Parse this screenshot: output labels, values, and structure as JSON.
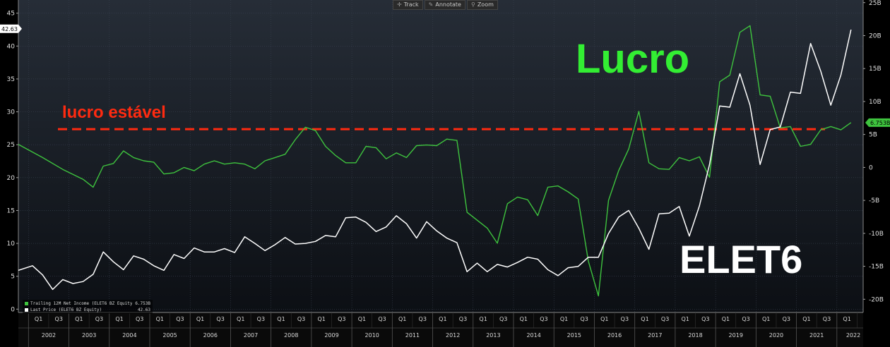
{
  "toolbar": {
    "buttons": [
      {
        "icon": "crosshair-icon",
        "glyph": "✛",
        "label": "Track"
      },
      {
        "icon": "pencil-icon",
        "glyph": "✎",
        "label": "Annotate"
      },
      {
        "icon": "magnifier-icon",
        "glyph": "⚲",
        "label": "Zoom"
      }
    ]
  },
  "legend": {
    "entries": [
      {
        "label": "Trailing 12M Net Income (ELET6 BZ Equity)",
        "value": "6.753B",
        "color": "#3ec33e"
      },
      {
        "label": "Last Price (ELET6 BZ Equity)",
        "value": "42.63",
        "color": "#ffffff"
      }
    ]
  },
  "annotations": {
    "lucro": {
      "text": "Lucro",
      "color": "#33ee33"
    },
    "elet6": {
      "text": "ELET6",
      "color": "#ffffff"
    },
    "estavel": {
      "text": "lucro estável",
      "color": "#ff2a10"
    }
  },
  "chart_data": {
    "type": "line",
    "x_unit": "year",
    "xlim": [
      2001.75,
      2022.65
    ],
    "grid": true,
    "left_axis": {
      "ticks": [
        0,
        5,
        10,
        15,
        20,
        25,
        30,
        35,
        40,
        45
      ],
      "ylim": [
        -0.5,
        47
      ]
    },
    "right_axis": {
      "ticks": [
        "25B",
        "20B",
        "15B",
        "10B",
        "5B",
        "0",
        "-5B",
        "-10B",
        "-15B",
        "-20B"
      ],
      "tick_values": [
        25,
        20,
        15,
        10,
        5,
        0,
        -5,
        -10,
        -15,
        -20
      ],
      "ylim": [
        -22,
        25.4
      ]
    },
    "year_labels": [
      "2002",
      "2003",
      "2004",
      "2005",
      "2006",
      "2007",
      "2008",
      "2009",
      "2010",
      "2011",
      "2012",
      "2013",
      "2014",
      "2015",
      "2016",
      "2017",
      "2018",
      "2019",
      "2020",
      "2021",
      "2022"
    ],
    "quarter_labels": [
      "Q1",
      "Q3"
    ],
    "price_flag": "42.63",
    "income_flag": "6.753B",
    "reference_line": {
      "axis": "right",
      "y": 5.8,
      "style": "dashed",
      "color": "#ff2a10"
    },
    "series": [
      {
        "name": "Last Price (ELET6 BZ Equity)",
        "axis": "left",
        "color": "#ffffff",
        "points": [
          [
            2001.75,
            5.9
          ],
          [
            2002.1,
            6.6
          ],
          [
            2002.35,
            5.2
          ],
          [
            2002.6,
            3.0
          ],
          [
            2002.85,
            4.5
          ],
          [
            2003.1,
            3.9
          ],
          [
            2003.35,
            4.2
          ],
          [
            2003.6,
            5.3
          ],
          [
            2003.85,
            8.7
          ],
          [
            2004.1,
            7.2
          ],
          [
            2004.35,
            6.0
          ],
          [
            2004.6,
            8.1
          ],
          [
            2004.85,
            7.6
          ],
          [
            2005.1,
            6.6
          ],
          [
            2005.35,
            5.9
          ],
          [
            2005.6,
            8.3
          ],
          [
            2005.85,
            7.7
          ],
          [
            2006.1,
            9.3
          ],
          [
            2006.35,
            8.7
          ],
          [
            2006.6,
            8.7
          ],
          [
            2006.85,
            9.2
          ],
          [
            2007.1,
            8.6
          ],
          [
            2007.35,
            11.0
          ],
          [
            2007.6,
            10.0
          ],
          [
            2007.85,
            8.9
          ],
          [
            2008.1,
            9.8
          ],
          [
            2008.35,
            10.9
          ],
          [
            2008.6,
            9.9
          ],
          [
            2008.85,
            10.0
          ],
          [
            2009.1,
            10.3
          ],
          [
            2009.35,
            11.2
          ],
          [
            2009.6,
            11.0
          ],
          [
            2009.85,
            13.9
          ],
          [
            2010.1,
            14.0
          ],
          [
            2010.35,
            13.2
          ],
          [
            2010.6,
            11.8
          ],
          [
            2010.85,
            12.5
          ],
          [
            2011.1,
            14.2
          ],
          [
            2011.35,
            13.0
          ],
          [
            2011.6,
            10.8
          ],
          [
            2011.85,
            13.3
          ],
          [
            2012.1,
            11.9
          ],
          [
            2012.35,
            10.8
          ],
          [
            2012.6,
            10.1
          ],
          [
            2012.85,
            5.7
          ],
          [
            2013.1,
            7.0
          ],
          [
            2013.35,
            5.7
          ],
          [
            2013.6,
            6.8
          ],
          [
            2013.85,
            6.4
          ],
          [
            2014.1,
            7.1
          ],
          [
            2014.35,
            7.9
          ],
          [
            2014.6,
            7.6
          ],
          [
            2014.85,
            6.0
          ],
          [
            2015.1,
            5.1
          ],
          [
            2015.35,
            6.3
          ],
          [
            2015.6,
            6.5
          ],
          [
            2015.85,
            7.9
          ],
          [
            2016.1,
            7.9
          ],
          [
            2016.35,
            11.5
          ],
          [
            2016.6,
            14.0
          ],
          [
            2016.85,
            15.0
          ],
          [
            2017.1,
            12.3
          ],
          [
            2017.35,
            9.1
          ],
          [
            2017.6,
            14.5
          ],
          [
            2017.85,
            14.6
          ],
          [
            2018.1,
            15.6
          ],
          [
            2018.35,
            11.1
          ],
          [
            2018.6,
            15.7
          ],
          [
            2018.85,
            22.0
          ],
          [
            2019.1,
            30.9
          ],
          [
            2019.35,
            30.7
          ],
          [
            2019.6,
            35.8
          ],
          [
            2019.85,
            31.0
          ],
          [
            2020.1,
            22.0
          ],
          [
            2020.35,
            27.3
          ],
          [
            2020.6,
            27.7
          ],
          [
            2020.85,
            33.0
          ],
          [
            2021.1,
            32.8
          ],
          [
            2021.35,
            40.4
          ],
          [
            2021.6,
            36.2
          ],
          [
            2021.85,
            31.0
          ],
          [
            2022.1,
            35.6
          ],
          [
            2022.35,
            42.5
          ]
        ]
      },
      {
        "name": "Trailing 12M Net Income (ELET6 BZ Equity)",
        "axis": "right",
        "color": "#3ec33e",
        "unit": "B",
        "points": [
          [
            2001.75,
            3.5
          ],
          [
            2002.35,
            1.5
          ],
          [
            2002.85,
            -0.3
          ],
          [
            2003.35,
            -1.8
          ],
          [
            2003.6,
            -3.0
          ],
          [
            2003.85,
            0.2
          ],
          [
            2004.1,
            0.6
          ],
          [
            2004.35,
            2.5
          ],
          [
            2004.6,
            1.5
          ],
          [
            2004.85,
            1.0
          ],
          [
            2005.1,
            0.8
          ],
          [
            2005.35,
            -1.0
          ],
          [
            2005.6,
            -0.8
          ],
          [
            2005.85,
            0.0
          ],
          [
            2006.1,
            -0.5
          ],
          [
            2006.35,
            0.5
          ],
          [
            2006.6,
            1.0
          ],
          [
            2006.85,
            0.5
          ],
          [
            2007.1,
            0.7
          ],
          [
            2007.35,
            0.5
          ],
          [
            2007.6,
            -0.2
          ],
          [
            2007.85,
            1.0
          ],
          [
            2008.1,
            1.5
          ],
          [
            2008.35,
            2.0
          ],
          [
            2008.6,
            4.2
          ],
          [
            2008.85,
            6.1
          ],
          [
            2009.1,
            5.6
          ],
          [
            2009.35,
            3.2
          ],
          [
            2009.6,
            1.8
          ],
          [
            2009.85,
            0.7
          ],
          [
            2010.1,
            0.7
          ],
          [
            2010.35,
            3.2
          ],
          [
            2010.6,
            3.0
          ],
          [
            2010.85,
            1.3
          ],
          [
            2011.1,
            2.2
          ],
          [
            2011.35,
            1.5
          ],
          [
            2011.6,
            3.3
          ],
          [
            2011.85,
            3.4
          ],
          [
            2012.1,
            3.3
          ],
          [
            2012.35,
            4.3
          ],
          [
            2012.6,
            4.1
          ],
          [
            2012.85,
            -6.8
          ],
          [
            2013.1,
            -8.0
          ],
          [
            2013.35,
            -9.2
          ],
          [
            2013.6,
            -11.5
          ],
          [
            2013.85,
            -5.5
          ],
          [
            2014.1,
            -4.5
          ],
          [
            2014.35,
            -4.9
          ],
          [
            2014.6,
            -7.3
          ],
          [
            2014.85,
            -3.0
          ],
          [
            2015.1,
            -2.8
          ],
          [
            2015.35,
            -3.7
          ],
          [
            2015.6,
            -4.8
          ],
          [
            2015.85,
            -14.2
          ],
          [
            2016.1,
            -19.5
          ],
          [
            2016.35,
            -5.0
          ],
          [
            2016.6,
            -0.5
          ],
          [
            2016.85,
            2.8
          ],
          [
            2017.1,
            8.5
          ],
          [
            2017.35,
            0.7
          ],
          [
            2017.6,
            -0.2
          ],
          [
            2017.85,
            -0.3
          ],
          [
            2018.1,
            1.5
          ],
          [
            2018.35,
            1.0
          ],
          [
            2018.6,
            1.6
          ],
          [
            2018.85,
            -1.5
          ],
          [
            2019.1,
            13.0
          ],
          [
            2019.35,
            14.0
          ],
          [
            2019.6,
            20.5
          ],
          [
            2019.85,
            21.5
          ],
          [
            2020.1,
            11.0
          ],
          [
            2020.35,
            10.8
          ],
          [
            2020.6,
            6.0
          ],
          [
            2020.85,
            6.2
          ],
          [
            2021.1,
            3.2
          ],
          [
            2021.35,
            3.5
          ],
          [
            2021.6,
            5.7
          ],
          [
            2021.85,
            6.2
          ],
          [
            2022.1,
            5.7
          ],
          [
            2022.35,
            6.8
          ]
        ]
      }
    ]
  }
}
